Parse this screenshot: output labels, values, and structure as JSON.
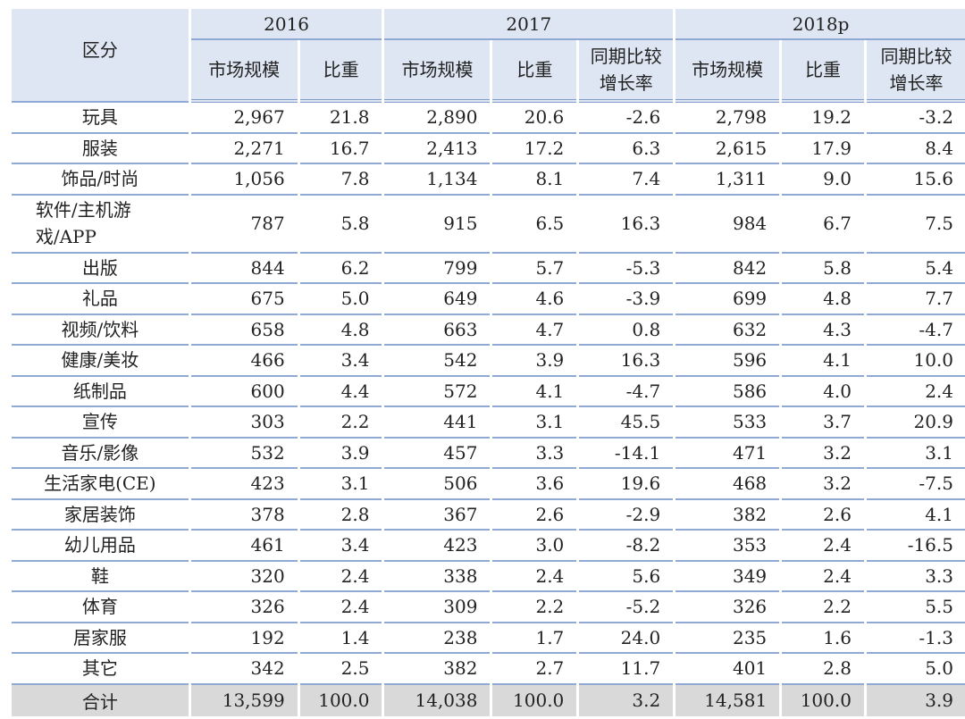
{
  "table": {
    "header": {
      "label": "区分",
      "years": [
        "2016",
        "2017",
        "2018p"
      ],
      "columns": [
        "市场规模",
        "比重",
        "市场规模",
        "比重",
        "同期比较增长率",
        "市场规模",
        "比重",
        "同期比较增长率"
      ]
    },
    "rows": [
      [
        "玩具",
        "2,967",
        "21.8",
        "2,890",
        "20.6",
        "-2.6",
        "2,798",
        "19.2",
        "-3.2"
      ],
      [
        "服装",
        "2,271",
        "16.7",
        "2,413",
        "17.2",
        "6.3",
        "2,615",
        "17.9",
        "8.4"
      ],
      [
        "饰品/时尚",
        "1,056",
        "7.8",
        "1,134",
        "8.1",
        "7.4",
        "1,311",
        "9.0",
        "15.6"
      ],
      [
        "软件/主机游戏/APP",
        "787",
        "5.8",
        "915",
        "6.5",
        "16.3",
        "984",
        "6.7",
        "7.5"
      ],
      [
        "出版",
        "844",
        "6.2",
        "799",
        "5.7",
        "-5.3",
        "842",
        "5.8",
        "5.4"
      ],
      [
        "礼品",
        "675",
        "5.0",
        "649",
        "4.6",
        "-3.9",
        "699",
        "4.8",
        "7.7"
      ],
      [
        "视频/饮料",
        "658",
        "4.8",
        "663",
        "4.7",
        "0.8",
        "632",
        "4.3",
        "-4.7"
      ],
      [
        "健康/美妆",
        "466",
        "3.4",
        "542",
        "3.9",
        "16.3",
        "596",
        "4.1",
        "10.0"
      ],
      [
        "纸制品",
        "600",
        "4.4",
        "572",
        "4.1",
        "-4.7",
        "586",
        "4.0",
        "2.4"
      ],
      [
        "宣传",
        "303",
        "2.2",
        "441",
        "3.1",
        "45.5",
        "533",
        "3.7",
        "20.9"
      ],
      [
        "音乐/影像",
        "532",
        "3.9",
        "457",
        "3.3",
        "-14.1",
        "471",
        "3.2",
        "3.1"
      ],
      [
        "生活家电(CE)",
        "423",
        "3.1",
        "506",
        "3.6",
        "19.6",
        "468",
        "3.2",
        "-7.5"
      ],
      [
        "家居装饰",
        "378",
        "2.8",
        "367",
        "2.6",
        "-2.9",
        "382",
        "2.6",
        "4.1"
      ],
      [
        "幼儿用品",
        "461",
        "3.4",
        "423",
        "3.0",
        "-8.2",
        "353",
        "2.4",
        "-16.5"
      ],
      [
        "鞋",
        "320",
        "2.4",
        "338",
        "2.4",
        "5.6",
        "349",
        "2.4",
        "3.3"
      ],
      [
        "体育",
        "326",
        "2.4",
        "309",
        "2.2",
        "-5.2",
        "326",
        "2.2",
        "5.5"
      ],
      [
        "居家服",
        "192",
        "1.4",
        "238",
        "1.7",
        "24.0",
        "235",
        "1.6",
        "-1.3"
      ],
      [
        "其它",
        "342",
        "2.5",
        "382",
        "2.7",
        "11.7",
        "401",
        "2.8",
        "5.0"
      ]
    ],
    "total": [
      "合计",
      "13,599",
      "100.0",
      "14,038",
      "100.0",
      "3.2",
      "14,581",
      "100.0",
      "3.9"
    ]
  }
}
